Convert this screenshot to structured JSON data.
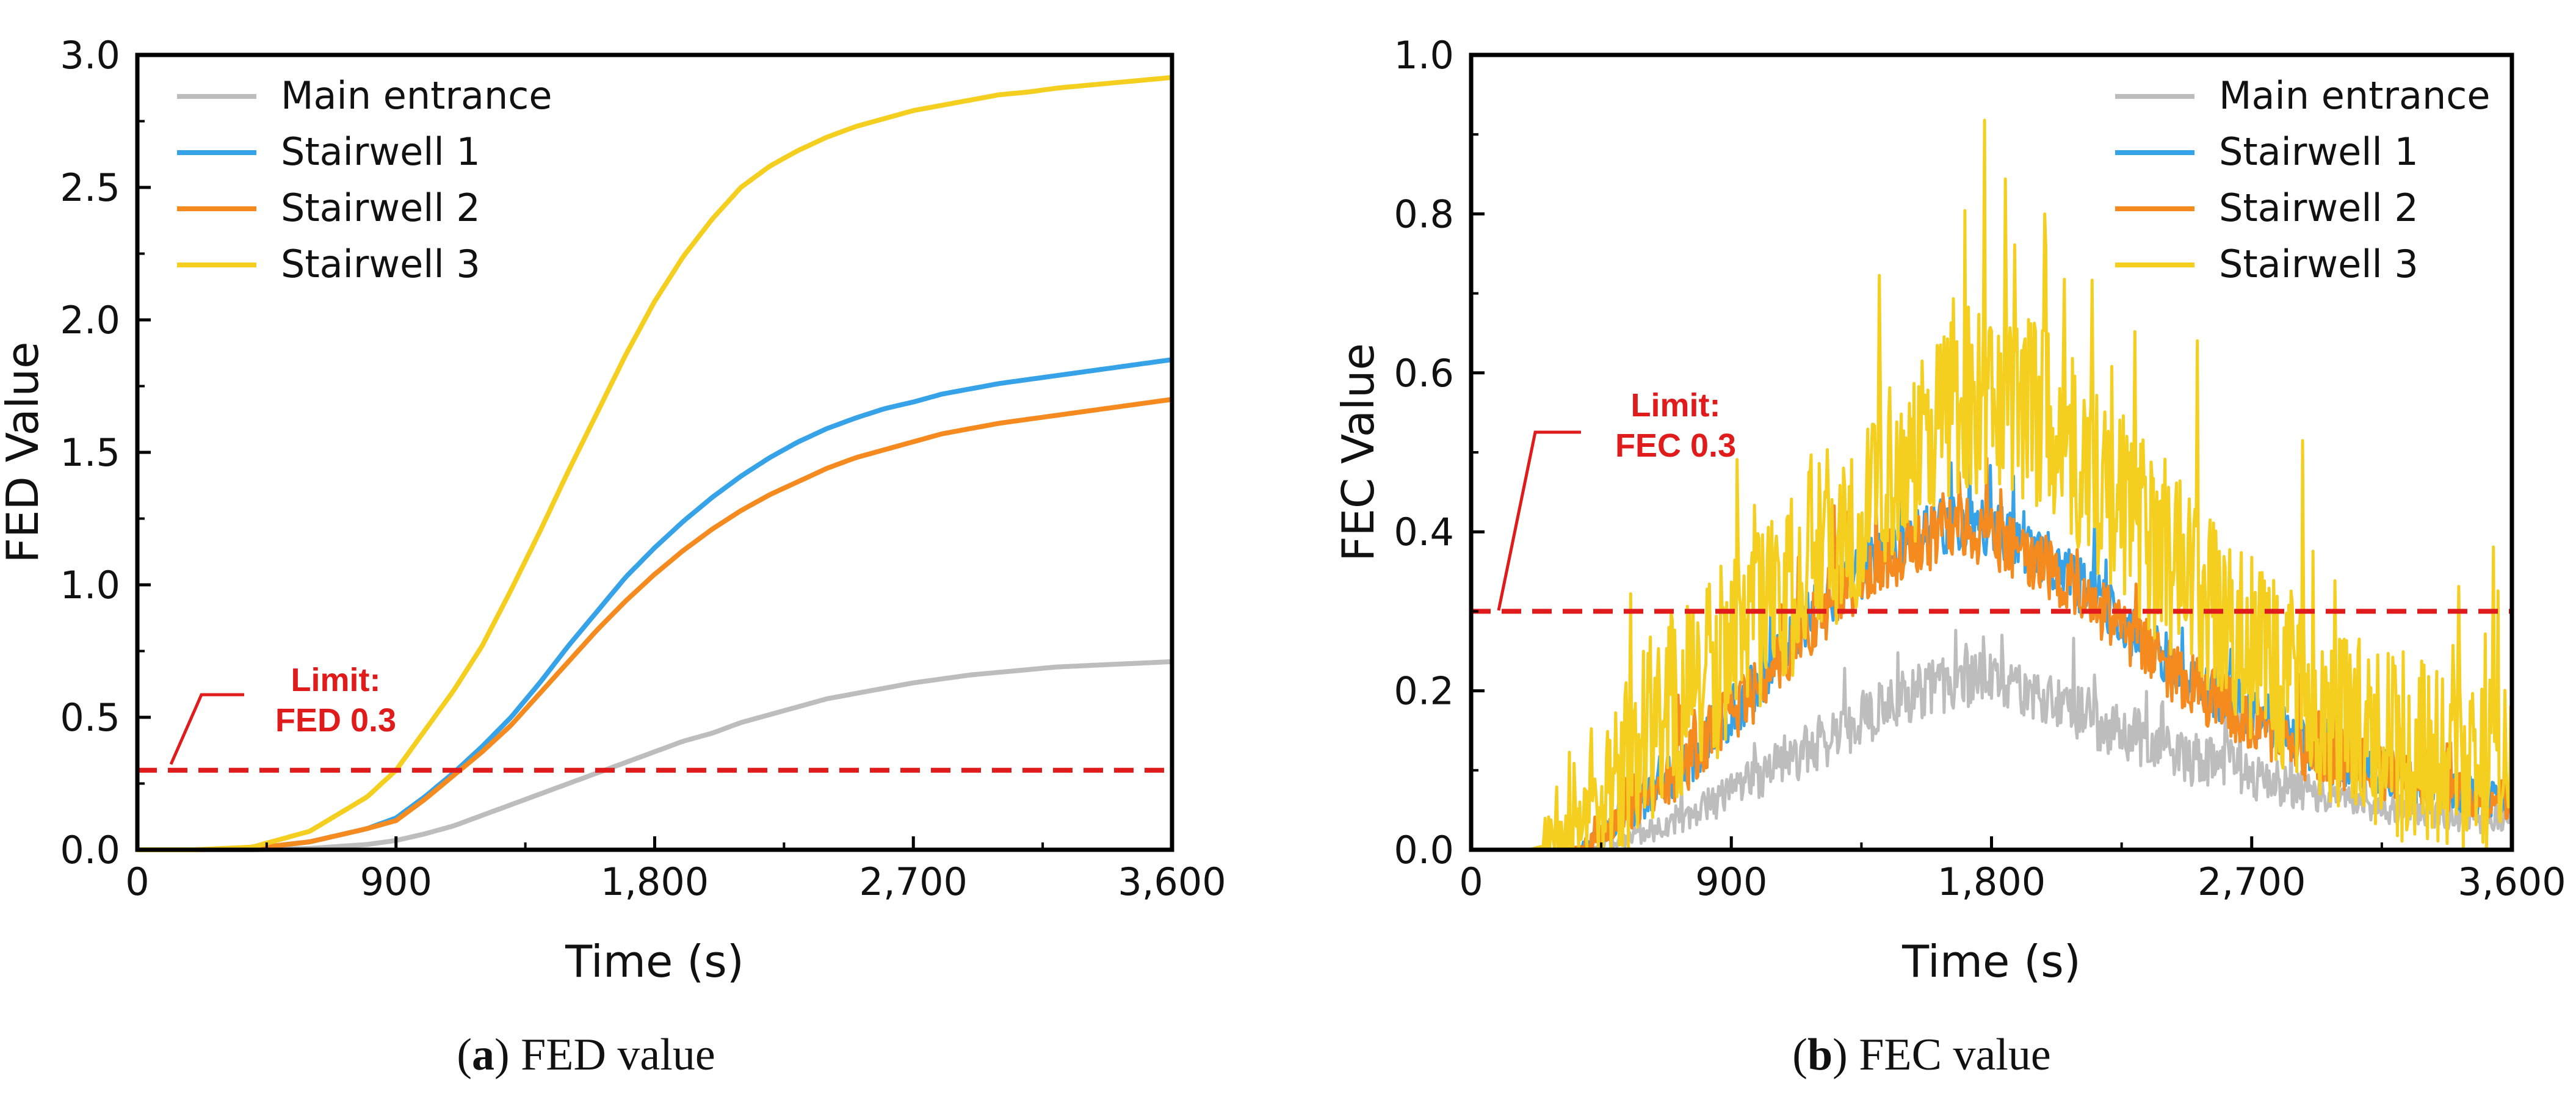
{
  "colors": {
    "main_entrance": "#bdbdbd",
    "stairwell_1": "#36a2e8",
    "stairwell_2": "#f58a1f",
    "stairwell_3": "#f5cf1f",
    "limit": "#e01b1b",
    "axis": "#000000"
  },
  "chart_data": [
    {
      "type": "line",
      "panel": "a",
      "caption_letter": "a",
      "caption_text": "FED value",
      "xlabel": "Time (s)",
      "ylabel": "FED Value",
      "xlim": [
        0,
        3600
      ],
      "ylim": [
        0,
        3.0
      ],
      "xticks": [
        0,
        900,
        1800,
        2700,
        3600
      ],
      "xtick_labels": [
        "0",
        "900",
        "1,800",
        "2,700",
        "3,600"
      ],
      "yticks": [
        0,
        0.5,
        1.0,
        1.5,
        2.0,
        2.5,
        3.0
      ],
      "ytick_labels": [
        "0.0",
        "0.5",
        "1.0",
        "1.5",
        "2.0",
        "2.5",
        "3.0"
      ],
      "legend": [
        "Main entrance",
        "Stairwell 1",
        "Stairwell 2",
        "Stairwell 3"
      ],
      "legend_position": "top-left",
      "limit_value": 0.3,
      "limit_label_line1": "Limit:",
      "limit_label_line2": "FED 0.3",
      "x": [
        0,
        200,
        400,
        600,
        800,
        900,
        1000,
        1100,
        1200,
        1300,
        1400,
        1500,
        1600,
        1700,
        1800,
        1900,
        2000,
        2100,
        2200,
        2300,
        2400,
        2500,
        2600,
        2700,
        2800,
        2900,
        3000,
        3100,
        3200,
        3300,
        3400,
        3500,
        3600
      ],
      "series": [
        {
          "name": "Main entrance",
          "values": [
            0,
            0,
            0,
            0.005,
            0.02,
            0.035,
            0.06,
            0.09,
            0.13,
            0.17,
            0.21,
            0.25,
            0.29,
            0.33,
            0.37,
            0.41,
            0.44,
            0.48,
            0.51,
            0.54,
            0.57,
            0.59,
            0.61,
            0.63,
            0.645,
            0.66,
            0.67,
            0.68,
            0.69,
            0.695,
            0.7,
            0.705,
            0.71
          ]
        },
        {
          "name": "Stairwell 1",
          "values": [
            0,
            0,
            0.005,
            0.03,
            0.08,
            0.12,
            0.2,
            0.29,
            0.39,
            0.5,
            0.63,
            0.77,
            0.9,
            1.03,
            1.14,
            1.24,
            1.33,
            1.41,
            1.48,
            1.54,
            1.59,
            1.63,
            1.665,
            1.69,
            1.72,
            1.74,
            1.76,
            1.775,
            1.79,
            1.805,
            1.82,
            1.835,
            1.85
          ]
        },
        {
          "name": "Stairwell 2",
          "values": [
            0,
            0,
            0.005,
            0.03,
            0.08,
            0.11,
            0.19,
            0.28,
            0.37,
            0.47,
            0.59,
            0.71,
            0.83,
            0.94,
            1.04,
            1.13,
            1.21,
            1.28,
            1.34,
            1.39,
            1.44,
            1.48,
            1.51,
            1.54,
            1.57,
            1.59,
            1.61,
            1.625,
            1.64,
            1.655,
            1.67,
            1.685,
            1.7
          ]
        },
        {
          "name": "Stairwell 3",
          "values": [
            0,
            0,
            0.01,
            0.07,
            0.2,
            0.3,
            0.45,
            0.6,
            0.77,
            0.98,
            1.2,
            1.43,
            1.65,
            1.87,
            2.07,
            2.24,
            2.38,
            2.5,
            2.58,
            2.64,
            2.69,
            2.73,
            2.76,
            2.79,
            2.81,
            2.83,
            2.85,
            2.86,
            2.875,
            2.885,
            2.895,
            2.905,
            2.915
          ]
        }
      ]
    },
    {
      "type": "line",
      "panel": "b",
      "caption_letter": "b",
      "caption_text": "FEC value",
      "xlabel": "Time (s)",
      "ylabel": "FEC Value",
      "xlim": [
        0,
        3600
      ],
      "ylim": [
        0,
        1.0
      ],
      "xticks": [
        0,
        900,
        1800,
        2700,
        3600
      ],
      "xtick_labels": [
        "0",
        "900",
        "1,800",
        "2,700",
        "3,600"
      ],
      "yticks": [
        0,
        0.2,
        0.4,
        0.6,
        0.8,
        1.0
      ],
      "ytick_labels": [
        "0.0",
        "0.2",
        "0.4",
        "0.6",
        "0.8",
        "1.0"
      ],
      "legend": [
        "Main entrance",
        "Stairwell 1",
        "Stairwell 2",
        "Stairwell 3"
      ],
      "legend_position": "top-right",
      "limit_value": 0.3,
      "limit_label_line1": "Limit:",
      "limit_label_line2": "FEC 0.3",
      "x": [
        0,
        200,
        300,
        400,
        500,
        600,
        700,
        800,
        900,
        1000,
        1100,
        1200,
        1300,
        1400,
        1500,
        1600,
        1700,
        1800,
        1900,
        2000,
        2100,
        2200,
        2300,
        2400,
        2500,
        2600,
        2700,
        2800,
        2900,
        3000,
        3100,
        3200,
        3300,
        3400,
        3500,
        3600
      ],
      "series": [
        {
          "name": "Main entrance",
          "noise": 0.035,
          "values": [
            0,
            0,
            0,
            0,
            0.01,
            0.02,
            0.03,
            0.05,
            0.07,
            0.09,
            0.11,
            0.13,
            0.15,
            0.17,
            0.19,
            0.2,
            0.21,
            0.21,
            0.2,
            0.19,
            0.17,
            0.15,
            0.14,
            0.12,
            0.11,
            0.1,
            0.09,
            0.08,
            0.07,
            0.06,
            0.055,
            0.05,
            0.045,
            0.04,
            0.035,
            0.035
          ]
        },
        {
          "name": "Stairwell 1",
          "noise": 0.035,
          "values": [
            0,
            0,
            0,
            0.005,
            0.03,
            0.06,
            0.09,
            0.13,
            0.17,
            0.21,
            0.26,
            0.3,
            0.33,
            0.36,
            0.38,
            0.4,
            0.41,
            0.4,
            0.38,
            0.36,
            0.33,
            0.3,
            0.27,
            0.24,
            0.21,
            0.19,
            0.17,
            0.15,
            0.13,
            0.11,
            0.1,
            0.09,
            0.08,
            0.07,
            0.065,
            0.06
          ]
        },
        {
          "name": "Stairwell 2",
          "noise": 0.04,
          "values": [
            0,
            0,
            0,
            0.005,
            0.03,
            0.06,
            0.09,
            0.13,
            0.17,
            0.2,
            0.25,
            0.29,
            0.32,
            0.35,
            0.37,
            0.39,
            0.4,
            0.39,
            0.37,
            0.35,
            0.32,
            0.29,
            0.26,
            0.23,
            0.2,
            0.18,
            0.16,
            0.14,
            0.12,
            0.11,
            0.1,
            0.09,
            0.08,
            0.07,
            0.065,
            0.06
          ]
        },
        {
          "name": "Stairwell 3",
          "noise": 0.12,
          "values": [
            0,
            0,
            0.01,
            0.04,
            0.08,
            0.12,
            0.16,
            0.2,
            0.24,
            0.28,
            0.32,
            0.36,
            0.4,
            0.44,
            0.48,
            0.52,
            0.55,
            0.56,
            0.55,
            0.52,
            0.48,
            0.44,
            0.4,
            0.36,
            0.32,
            0.28,
            0.24,
            0.21,
            0.18,
            0.16,
            0.14,
            0.12,
            0.11,
            0.1,
            0.09,
            0.09
          ]
        }
      ]
    }
  ]
}
